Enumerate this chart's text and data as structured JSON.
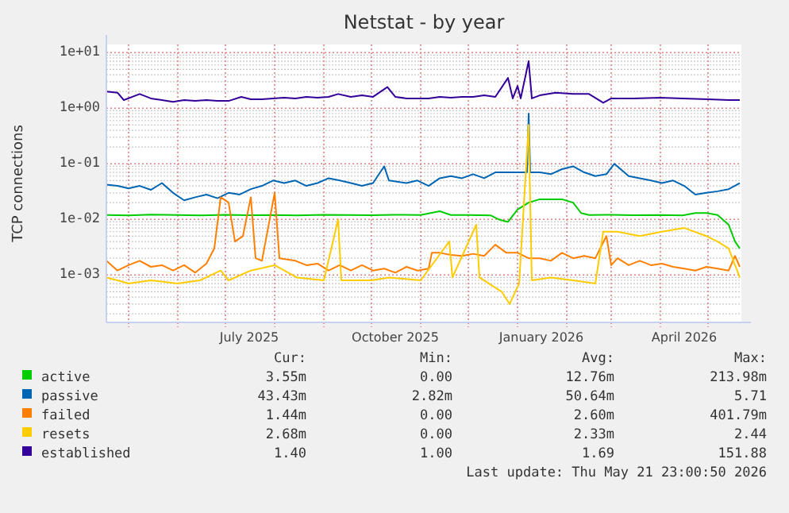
{
  "chart_data": {
    "type": "line",
    "title": "Netstat - by year",
    "ylabel": "TCP connections",
    "log": "y",
    "grid": true,
    "legend": "bottom",
    "xlim": [
      "2025-04-17",
      "2026-05-22"
    ],
    "xticks": [
      {
        "value": "2025-05-01",
        "label": null
      },
      {
        "value": "2025-06-01",
        "label": null
      },
      {
        "value": "2025-07-01",
        "label": null
      },
      {
        "value": "2025-07-16",
        "label": "July 2025"
      },
      {
        "value": "2025-08-01",
        "label": null
      },
      {
        "value": "2025-09-01",
        "label": null
      },
      {
        "value": "2025-10-01",
        "label": null
      },
      {
        "value": "2025-10-16",
        "label": "October 2025"
      },
      {
        "value": "2025-11-01",
        "label": null
      },
      {
        "value": "2025-12-01",
        "label": null
      },
      {
        "value": "2026-01-01",
        "label": null
      },
      {
        "value": "2026-01-16",
        "label": "January 2026"
      },
      {
        "value": "2026-02-01",
        "label": null
      },
      {
        "value": "2026-03-01",
        "label": null
      },
      {
        "value": "2026-04-01",
        "label": null
      },
      {
        "value": "2026-04-16",
        "label": "April 2026"
      },
      {
        "value": "2026-05-01",
        "label": null
      }
    ],
    "ylim": [
      0.00014,
      14
    ],
    "yticks": [
      {
        "value": 0.001,
        "label": "1e-03"
      },
      {
        "value": 0.01,
        "label": "1e-02"
      },
      {
        "value": 0.1,
        "label": "1e-01"
      },
      {
        "value": 1,
        "label": "1e+00"
      },
      {
        "value": 10,
        "label": "1e+01"
      }
    ],
    "series": [
      {
        "name": "active",
        "color": "#00cc00",
        "x": [
          "2025-04-17",
          "2025-05-01",
          "2025-05-15",
          "2025-06-01",
          "2025-06-15",
          "2025-07-01",
          "2025-07-15",
          "2025-08-01",
          "2025-08-15",
          "2025-09-01",
          "2025-09-15",
          "2025-10-01",
          "2025-10-15",
          "2025-11-01",
          "2025-11-13",
          "2025-11-20",
          "2025-12-01",
          "2025-12-15",
          "2025-12-20",
          "2025-12-26",
          "2026-01-01",
          "2026-01-08",
          "2026-01-15",
          "2026-01-22",
          "2026-01-29",
          "2026-02-05",
          "2026-02-10",
          "2026-02-15",
          "2026-03-01",
          "2026-03-15",
          "2026-04-01",
          "2026-04-15",
          "2026-04-23",
          "2026-04-30",
          "2026-05-07",
          "2026-05-14",
          "2026-05-18",
          "2026-05-21"
        ],
        "values": [
          0.012,
          0.0118,
          0.0122,
          0.012,
          0.0118,
          0.0121,
          0.0119,
          0.012,
          0.0118,
          0.0121,
          0.012,
          0.0119,
          0.0121,
          0.012,
          0.014,
          0.012,
          0.012,
          0.0118,
          0.01,
          0.009,
          0.015,
          0.02,
          0.023,
          0.023,
          0.023,
          0.02,
          0.013,
          0.012,
          0.0121,
          0.0119,
          0.012,
          0.0118,
          0.013,
          0.013,
          0.012,
          0.008,
          0.004,
          0.003
        ]
      },
      {
        "name": "passive",
        "color": "#0066b3",
        "x": [
          "2025-04-17",
          "2025-04-24",
          "2025-05-01",
          "2025-05-08",
          "2025-05-15",
          "2025-05-22",
          "2025-05-29",
          "2025-06-05",
          "2025-06-12",
          "2025-06-19",
          "2025-06-26",
          "2025-07-03",
          "2025-07-10",
          "2025-07-17",
          "2025-07-24",
          "2025-07-31",
          "2025-08-07",
          "2025-08-14",
          "2025-08-21",
          "2025-08-28",
          "2025-09-04",
          "2025-09-11",
          "2025-09-18",
          "2025-09-25",
          "2025-10-02",
          "2025-10-09",
          "2025-10-12",
          "2025-10-23",
          "2025-10-30",
          "2025-11-06",
          "2025-11-13",
          "2025-11-20",
          "2025-11-27",
          "2025-12-04",
          "2025-12-11",
          "2025-12-18",
          "2025-12-25",
          "2026-01-01",
          "2026-01-07",
          "2026-01-08",
          "2026-01-09",
          "2026-01-15",
          "2026-01-22",
          "2026-01-29",
          "2026-02-05",
          "2026-02-12",
          "2026-02-19",
          "2026-02-26",
          "2026-03-03",
          "2026-03-12",
          "2026-03-19",
          "2026-03-26",
          "2026-04-02",
          "2026-04-09",
          "2026-04-16",
          "2026-04-23",
          "2026-04-30",
          "2026-05-07",
          "2026-05-14",
          "2026-05-21"
        ],
        "values": [
          0.042,
          0.04,
          0.036,
          0.04,
          0.034,
          0.045,
          0.03,
          0.022,
          0.025,
          0.028,
          0.024,
          0.03,
          0.028,
          0.035,
          0.04,
          0.05,
          0.045,
          0.05,
          0.04,
          0.045,
          0.055,
          0.05,
          0.045,
          0.04,
          0.045,
          0.09,
          0.05,
          0.045,
          0.05,
          0.04,
          0.055,
          0.06,
          0.055,
          0.065,
          0.055,
          0.07,
          0.07,
          0.07,
          0.07,
          0.8,
          0.07,
          0.07,
          0.065,
          0.08,
          0.09,
          0.07,
          0.06,
          0.065,
          0.1,
          0.06,
          0.055,
          0.05,
          0.045,
          0.05,
          0.04,
          0.028,
          0.03,
          0.032,
          0.035,
          0.045
        ]
      },
      {
        "name": "failed",
        "color": "#ff8000",
        "x": [
          "2025-04-17",
          "2025-04-24",
          "2025-05-01",
          "2025-05-08",
          "2025-05-15",
          "2025-05-22",
          "2025-05-29",
          "2025-06-05",
          "2025-06-12",
          "2025-06-19",
          "2025-06-24",
          "2025-06-28",
          "2025-07-03",
          "2025-07-07",
          "2025-07-12",
          "2025-07-17",
          "2025-07-20",
          "2025-07-24",
          "2025-08-01",
          "2025-08-04",
          "2025-08-14",
          "2025-08-21",
          "2025-08-28",
          "2025-09-04",
          "2025-09-11",
          "2025-09-18",
          "2025-09-25",
          "2025-10-02",
          "2025-10-09",
          "2025-10-16",
          "2025-10-23",
          "2025-10-30",
          "2025-11-06",
          "2025-11-08",
          "2025-11-13",
          "2025-11-20",
          "2025-11-27",
          "2025-12-04",
          "2025-12-11",
          "2025-12-18",
          "2025-12-25",
          "2026-01-01",
          "2026-01-08",
          "2026-01-15",
          "2026-01-22",
          "2026-01-29",
          "2026-02-05",
          "2026-02-12",
          "2026-02-19",
          "2026-02-26",
          "2026-03-01",
          "2026-03-05",
          "2026-03-12",
          "2026-03-19",
          "2026-03-26",
          "2026-04-02",
          "2026-04-09",
          "2026-04-16",
          "2026-04-23",
          "2026-04-30",
          "2026-05-07",
          "2026-05-14",
          "2026-05-18",
          "2026-05-21"
        ],
        "values": [
          0.0018,
          0.0012,
          0.0015,
          0.0018,
          0.0014,
          0.0015,
          0.0012,
          0.0015,
          0.0011,
          0.0016,
          0.003,
          0.025,
          0.02,
          0.004,
          0.005,
          0.025,
          0.002,
          0.0018,
          0.03,
          0.002,
          0.0018,
          0.0015,
          0.0016,
          0.0012,
          0.0015,
          0.0012,
          0.0015,
          0.0012,
          0.0013,
          0.0011,
          0.0014,
          0.0012,
          0.0013,
          0.0025,
          0.0025,
          0.0023,
          0.0022,
          0.0024,
          0.0022,
          0.0035,
          0.0025,
          0.0025,
          0.002,
          0.002,
          0.0018,
          0.0025,
          0.002,
          0.0022,
          0.002,
          0.005,
          0.0015,
          0.002,
          0.0015,
          0.0018,
          0.0015,
          0.0016,
          0.0014,
          0.0013,
          0.0012,
          0.0014,
          0.0013,
          0.0012,
          0.0022,
          0.0014
        ]
      },
      {
        "name": "resets",
        "color": "#ffcc00",
        "x": [
          "2025-04-17",
          "2025-04-24",
          "2025-05-01",
          "2025-05-15",
          "2025-06-01",
          "2025-06-15",
          "2025-06-28",
          "2025-07-03",
          "2025-07-17",
          "2025-08-01",
          "2025-08-15",
          "2025-09-01",
          "2025-09-10",
          "2025-09-12",
          "2025-10-01",
          "2025-10-12",
          "2025-11-01",
          "2025-11-19",
          "2025-11-21",
          "2025-12-06",
          "2025-12-08",
          "2025-12-22",
          "2025-12-27",
          "2026-01-02",
          "2026-01-08",
          "2026-01-10",
          "2026-01-22",
          "2026-02-05",
          "2026-02-19",
          "2026-02-24",
          "2026-03-05",
          "2026-03-19",
          "2026-04-02",
          "2026-04-16",
          "2026-04-30",
          "2026-05-07",
          "2026-05-14",
          "2026-05-21"
        ],
        "values": [
          0.0009,
          0.0008,
          0.0007,
          0.0008,
          0.0007,
          0.0008,
          0.0012,
          0.0008,
          0.0012,
          0.0015,
          0.0009,
          0.0008,
          0.01,
          0.0008,
          0.0008,
          0.0009,
          0.0008,
          0.004,
          0.0009,
          0.008,
          0.0009,
          0.0005,
          0.0003,
          0.0007,
          0.5,
          0.0008,
          0.0009,
          0.0008,
          0.0007,
          0.006,
          0.006,
          0.005,
          0.006,
          0.007,
          0.005,
          0.004,
          0.003,
          0.0009
        ]
      },
      {
        "name": "established",
        "color": "#330099",
        "x": [
          "2025-04-17",
          "2025-04-24",
          "2025-04-28",
          "2025-05-08",
          "2025-05-15",
          "2025-05-22",
          "2025-05-29",
          "2025-06-05",
          "2025-06-12",
          "2025-06-19",
          "2025-06-26",
          "2025-07-03",
          "2025-07-11",
          "2025-07-17",
          "2025-07-24",
          "2025-07-31",
          "2025-08-07",
          "2025-08-14",
          "2025-08-21",
          "2025-08-28",
          "2025-09-04",
          "2025-09-10",
          "2025-09-18",
          "2025-09-25",
          "2025-10-02",
          "2025-10-11",
          "2025-10-16",
          "2025-10-23",
          "2025-10-30",
          "2025-11-06",
          "2025-11-13",
          "2025-11-20",
          "2025-11-27",
          "2025-12-04",
          "2025-12-11",
          "2025-12-18",
          "2025-12-26",
          "2025-12-29",
          "2026-01-01",
          "2026-01-03",
          "2026-01-08",
          "2026-01-10",
          "2026-01-15",
          "2026-01-25",
          "2026-02-05",
          "2026-02-15",
          "2026-02-24",
          "2026-03-01",
          "2026-03-15",
          "2026-04-01",
          "2026-04-15",
          "2026-05-01",
          "2026-05-14",
          "2026-05-21"
        ],
        "values": [
          2.0,
          1.9,
          1.4,
          1.8,
          1.5,
          1.4,
          1.3,
          1.4,
          1.35,
          1.4,
          1.35,
          1.35,
          1.6,
          1.45,
          1.45,
          1.5,
          1.55,
          1.5,
          1.6,
          1.55,
          1.6,
          1.8,
          1.6,
          1.7,
          1.6,
          2.4,
          1.6,
          1.5,
          1.5,
          1.5,
          1.6,
          1.55,
          1.6,
          1.6,
          1.7,
          1.6,
          3.5,
          1.5,
          2.5,
          1.5,
          7,
          1.5,
          1.7,
          1.9,
          1.8,
          1.8,
          1.25,
          1.5,
          1.5,
          1.55,
          1.5,
          1.45,
          1.4,
          1.4
        ]
      }
    ],
    "annotations": [
      "Cur:",
      "Min:",
      "Avg:",
      "Max:",
      "3.55m",
      "0.00",
      "12.76m",
      "213.98m",
      "43.43m",
      "2.82m",
      "50.64m",
      "5.71",
      "1.44m",
      "0.00",
      "2.60m",
      "401.79m",
      "2.68m",
      "0.00",
      "2.33m",
      "2.44",
      "1.40",
      "1.00",
      "1.69",
      "151.88",
      "Last update: Thu May 21 23:00:50 2026"
    ]
  }
}
